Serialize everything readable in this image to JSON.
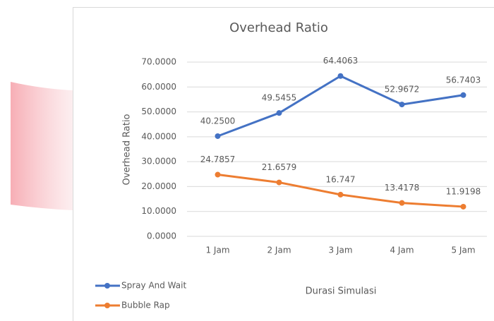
{
  "chart_data": {
    "type": "line",
    "title": "Overhead Ratio",
    "x_label": "Durasi Simulasi",
    "y_label": "Overhead Ratio",
    "categories": [
      "1 Jam",
      "2 Jam",
      "3 Jam",
      "4 Jam",
      "5 Jam"
    ],
    "series": [
      {
        "name": "Spray And Wait",
        "color": "#4472c4",
        "values": [
          40.25,
          49.5455,
          64.4063,
          52.9672,
          56.7403
        ],
        "value_labels": [
          "40.2500",
          "49.5455",
          "64.4063",
          "52.9672",
          "56.7403"
        ]
      },
      {
        "name": "Bubble Rap",
        "color": "#ed7d31",
        "values": [
          24.7857,
          21.6579,
          16.747,
          13.4178,
          11.9198
        ],
        "value_labels": [
          "24.7857",
          "21.6579",
          "16.747",
          "13.4178",
          "11.9198"
        ]
      }
    ],
    "ylim": [
      0,
      70
    ],
    "yticks": [
      {
        "value": 0,
        "label": "0.0000"
      },
      {
        "value": 10,
        "label": "10.0000"
      },
      {
        "value": 20,
        "label": "20.0000"
      },
      {
        "value": 30,
        "label": "30.0000"
      },
      {
        "value": 40,
        "label": "40.0000"
      },
      {
        "value": 50,
        "label": "50.0000"
      },
      {
        "value": 60,
        "label": "60.0000"
      },
      {
        "value": 70,
        "label": "70.0000"
      }
    ],
    "grid": true,
    "legend": "bottom-left"
  }
}
